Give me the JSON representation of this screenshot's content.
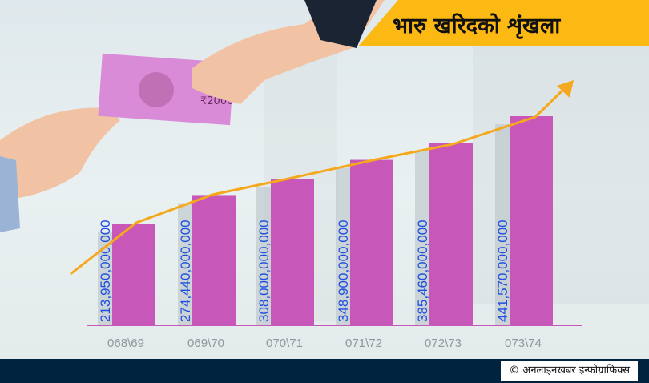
{
  "chart_data": {
    "type": "bar",
    "title": "भारु खरिदको शृंखला",
    "categories": [
      "068\\69",
      "069\\70",
      "070\\71",
      "071\\72",
      "072\\73",
      "073\\74"
    ],
    "values": [
      213950000000,
      274440000000,
      308000000000,
      348900000000,
      385460000000,
      441570000000
    ],
    "value_labels": [
      "213,950,000,000",
      "274,440,000,000",
      "308,000,000,000",
      "348,900,000,000",
      "385,460,000,000",
      "441,570,000,000"
    ],
    "trend_line": "rising arrow",
    "colors": {
      "bar": "#c757b8",
      "value_label": "#1f4fe0",
      "trend": "#f5a81c",
      "title_band": "#fdb913",
      "footer": "#00233f",
      "category_label": "#8e979c"
    }
  },
  "footer": {
    "credit": "© अनलाइनखबर इन्फोग्राफिक्स"
  }
}
